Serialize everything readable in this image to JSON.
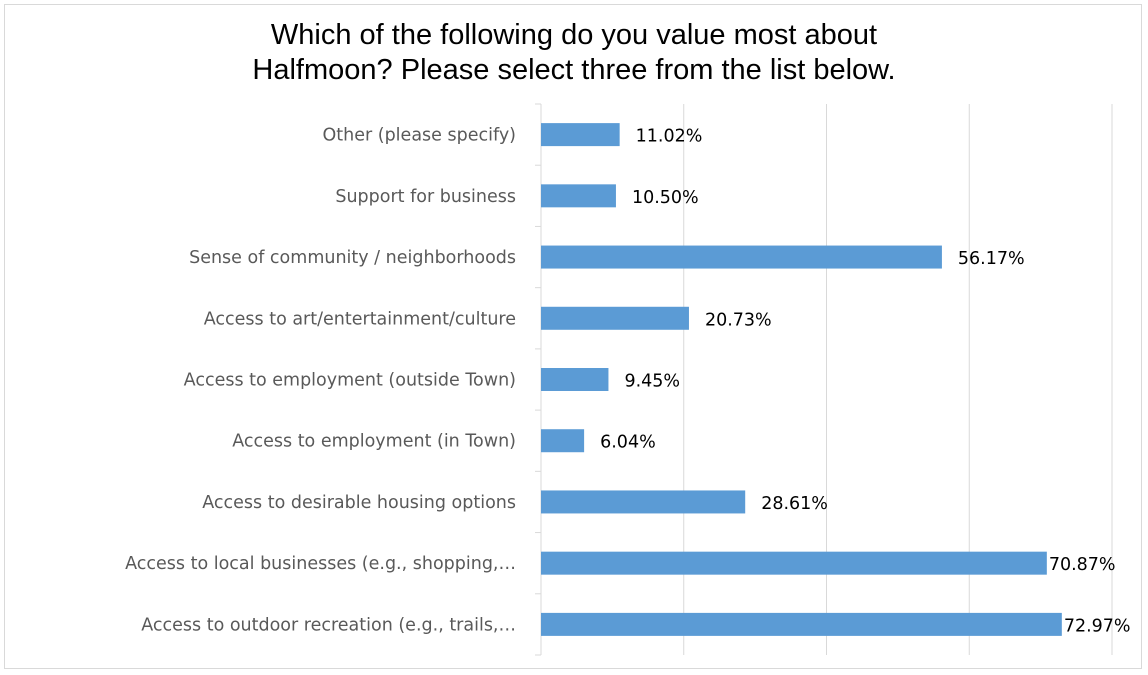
{
  "chart_data": {
    "type": "bar",
    "orientation": "horizontal",
    "title_lines": [
      "Which of the following do you value most about",
      "Halfmoon? Please select three from the list below."
    ],
    "categories": [
      "Other (please specify)",
      "Support for business",
      "Sense of community / neighborhoods",
      "Access to art/entertainment/culture",
      "Access to employment (outside Town)",
      "Access to employment (in Town)",
      "Access to desirable housing options",
      "Access to local businesses (e.g., shopping,…",
      "Access to outdoor recreation (e.g., trails,…"
    ],
    "values": [
      11.02,
      10.5,
      56.17,
      20.73,
      9.45,
      6.04,
      28.61,
      70.87,
      72.97
    ],
    "data_labels": [
      "11.02%",
      "10.50%",
      "56.17%",
      "20.73%",
      "9.45%",
      "6.04%",
      "28.61%",
      "70.87%",
      "72.97%"
    ],
    "xlim": [
      0,
      80
    ],
    "x_gridlines": [
      0,
      20,
      40,
      60,
      80
    ],
    "grid": true,
    "bar_color": "#5b9bd5",
    "legend": "none"
  }
}
